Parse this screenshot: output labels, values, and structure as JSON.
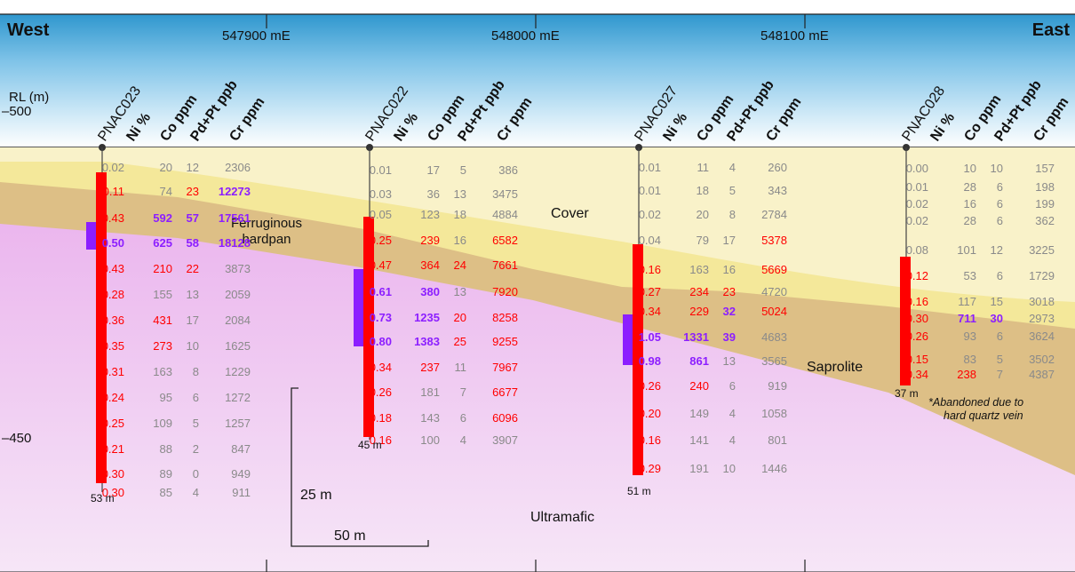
{
  "header": {
    "left_title": "West",
    "right_title": "East",
    "rl_label": "RL (m)",
    "rl_top_value": "–500",
    "rl_bottom_value": "–450",
    "eastings": [
      "547900 mE",
      "548000 mE",
      "548100 mE"
    ]
  },
  "units": {
    "labels": [
      "Cover",
      "Ferruginous hardpan",
      "Saprolite",
      "Ultramafic"
    ]
  },
  "scale": {
    "vertical": "25 m",
    "horizontal": "50 m"
  },
  "colors": {
    "cover": "#f9f2c9",
    "hardpan": "#f4e89a",
    "saprolite": "#ddbf86",
    "ultramafic": "#ebb6ee",
    "sky_top": "#2f97ce",
    "ni_bar": "#ff0000",
    "pge_bar": "#8c1eff",
    "grade_red": "#ff0000",
    "grade_purple": "#8c1eff",
    "low_grey": "#8a8a8a"
  },
  "column_headers": [
    "Ni %",
    "Co ppm",
    "Pd+Pt ppb",
    "Cr ppm"
  ],
  "drillholes": [
    {
      "name": "PNAC023",
      "depth": "53 m",
      "rows": [
        [
          "0.02",
          "20",
          "12",
          "2306"
        ],
        [
          "0.11",
          "74",
          "23",
          "12273"
        ],
        [
          "0.43",
          "592",
          "57",
          "17561"
        ],
        [
          "0.50",
          "625",
          "58",
          "18128"
        ],
        [
          "0.43",
          "210",
          "22",
          "3873"
        ],
        [
          "0.28",
          "155",
          "13",
          "2059"
        ],
        [
          "0.36",
          "431",
          "17",
          "2084"
        ],
        [
          "0.35",
          "273",
          "10",
          "1625"
        ],
        [
          "0.31",
          "163",
          "8",
          "1229"
        ],
        [
          "0.24",
          "95",
          "6",
          "1272"
        ],
        [
          "0.25",
          "109",
          "5",
          "1257"
        ],
        [
          "0.21",
          "88",
          "2",
          "847"
        ],
        [
          "0.30",
          "89",
          "0",
          "949"
        ],
        [
          "0.30",
          "85",
          "4",
          "911"
        ]
      ]
    },
    {
      "name": "PNAC022",
      "depth": "45 m",
      "rows": [
        [
          "0.01",
          "17",
          "5",
          "386"
        ],
        [
          "0.03",
          "36",
          "13",
          "3475"
        ],
        [
          "0.05",
          "123",
          "18",
          "4884"
        ],
        [
          "0.25",
          "239",
          "16",
          "6582"
        ],
        [
          "0.47",
          "364",
          "24",
          "7661"
        ],
        [
          "0.61",
          "380",
          "13",
          "7920"
        ],
        [
          "0.73",
          "1235",
          "20",
          "8258"
        ],
        [
          "0.80",
          "1383",
          "25",
          "9255"
        ],
        [
          "0.34",
          "237",
          "11",
          "7967"
        ],
        [
          "0.26",
          "181",
          "7",
          "6677"
        ],
        [
          "0.18",
          "143",
          "6",
          "6096"
        ],
        [
          "0.16",
          "100",
          "4",
          "3907"
        ]
      ]
    },
    {
      "name": "PNAC027",
      "depth": "51 m",
      "rows": [
        [
          "0.01",
          "11",
          "4",
          "260"
        ],
        [
          "0.01",
          "18",
          "5",
          "343"
        ],
        [
          "0.02",
          "20",
          "8",
          "2784"
        ],
        [
          "0.04",
          "79",
          "17",
          "5378"
        ],
        [
          "0.16",
          "163",
          "16",
          "5669"
        ],
        [
          "0.27",
          "234",
          "23",
          "4720"
        ],
        [
          "0.34",
          "229",
          "32",
          "5024"
        ],
        [
          "1.05",
          "1331",
          "39",
          "4683"
        ],
        [
          "0.98",
          "861",
          "13",
          "3565"
        ],
        [
          "0.26",
          "240",
          "6",
          "919"
        ],
        [
          "0.20",
          "149",
          "4",
          "1058"
        ],
        [
          "0.16",
          "141",
          "4",
          "801"
        ],
        [
          "0.29",
          "191",
          "10",
          "1446"
        ]
      ]
    },
    {
      "name": "PNAC028",
      "depth": "37 m",
      "note_line1": "*Abandoned due to",
      "note_line2": "hard quartz vein",
      "rows": [
        [
          "0.00",
          "10",
          "10",
          "157"
        ],
        [
          "0.01",
          "28",
          "6",
          "198"
        ],
        [
          "0.02",
          "16",
          "6",
          "199"
        ],
        [
          "0.02",
          "28",
          "6",
          "362"
        ],
        [
          "0.08",
          "101",
          "12",
          "3225"
        ],
        [
          "0.12",
          "53",
          "6",
          "1729"
        ],
        [
          "0.16",
          "117",
          "15",
          "3018"
        ],
        [
          "0.30",
          "711",
          "30",
          "2973"
        ],
        [
          "0.26",
          "93",
          "6",
          "3624"
        ],
        [
          "0.15",
          "83",
          "5",
          "3502"
        ],
        [
          "0.34",
          "238",
          "7",
          "4387"
        ]
      ]
    }
  ]
}
